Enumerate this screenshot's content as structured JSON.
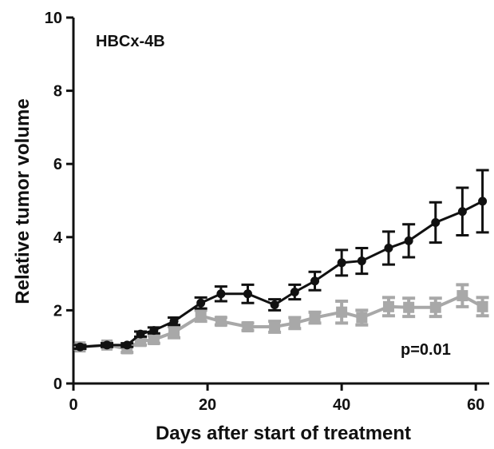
{
  "chart_data": {
    "type": "line",
    "title": "HBCx-4B",
    "xlabel": "Days after start of treatment",
    "ylabel": "Relative tumor volume",
    "xlim": [
      0,
      62
    ],
    "ylim": [
      0,
      10
    ],
    "x_ticks": [
      0,
      20,
      40,
      60
    ],
    "y_ticks": [
      0,
      2,
      4,
      6,
      8,
      10
    ],
    "grid": false,
    "annotation": "p=0.01",
    "series": [
      {
        "color": "#111111",
        "marker": "circle",
        "x": [
          1,
          5,
          8,
          10,
          12,
          15,
          19,
          22,
          26,
          30,
          33,
          36,
          40,
          43,
          47,
          50,
          54,
          58,
          61
        ],
        "y": [
          1.0,
          1.05,
          1.05,
          1.35,
          1.45,
          1.7,
          2.2,
          2.45,
          2.45,
          2.15,
          2.5,
          2.8,
          3.3,
          3.35,
          3.7,
          3.9,
          4.4,
          4.7,
          4.98
        ],
        "err": [
          0.05,
          0.05,
          0.05,
          0.07,
          0.08,
          0.1,
          0.15,
          0.2,
          0.25,
          0.15,
          0.2,
          0.25,
          0.35,
          0.35,
          0.45,
          0.45,
          0.55,
          0.65,
          0.85
        ]
      },
      {
        "color": "#a8a8a8",
        "marker": "square",
        "x": [
          1,
          5,
          8,
          10,
          12,
          15,
          19,
          22,
          26,
          30,
          33,
          36,
          40,
          43,
          47,
          50,
          54,
          58,
          61
        ],
        "y": [
          1.0,
          1.05,
          0.95,
          1.15,
          1.2,
          1.4,
          1.85,
          1.7,
          1.55,
          1.55,
          1.65,
          1.8,
          1.95,
          1.8,
          2.1,
          2.08,
          2.08,
          2.4,
          2.1
        ],
        "err": [
          0.05,
          0.05,
          0.1,
          0.1,
          0.1,
          0.15,
          0.15,
          0.1,
          0.1,
          0.15,
          0.15,
          0.15,
          0.3,
          0.2,
          0.25,
          0.25,
          0.25,
          0.3,
          0.25
        ]
      }
    ]
  }
}
